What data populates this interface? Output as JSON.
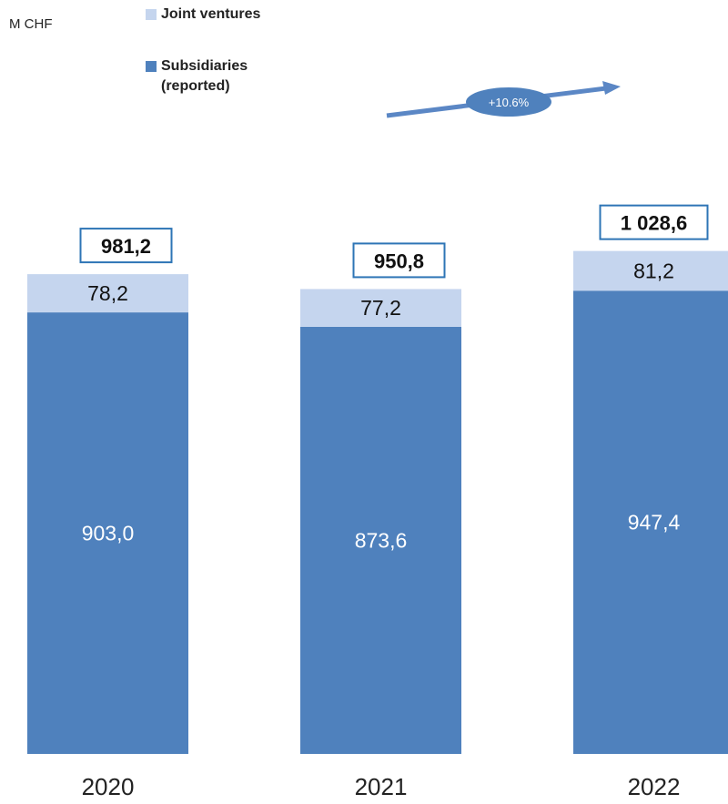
{
  "unit_label": "M CHF",
  "legend": [
    {
      "label": "Joint ventures",
      "color": "#c5d5ee"
    },
    {
      "label": "Subsidiaries\n(reported)",
      "color": "#4f81bd"
    }
  ],
  "growth_annotation": "+10.6%",
  "chart_data": {
    "type": "bar",
    "stacked": true,
    "categories": [
      "2020",
      "2021",
      "2022"
    ],
    "series": [
      {
        "name": "Subsidiaries (reported)",
        "values": [
          903.0,
          873.6,
          947.4
        ],
        "labels": [
          "903,0",
          "873,6",
          "947,4"
        ],
        "color": "#4f81bd"
      },
      {
        "name": "Joint ventures",
        "values": [
          78.2,
          77.2,
          81.2
        ],
        "labels": [
          "78,2",
          "77,2",
          "81,2"
        ],
        "color": "#c5d5ee"
      }
    ],
    "totals": [
      981.2,
      950.8,
      1028.6
    ],
    "total_labels": [
      "981,2",
      "950,8",
      "1 028,6"
    ],
    "ylabel": "M CHF",
    "grid": false,
    "legend_position": "top-left"
  }
}
